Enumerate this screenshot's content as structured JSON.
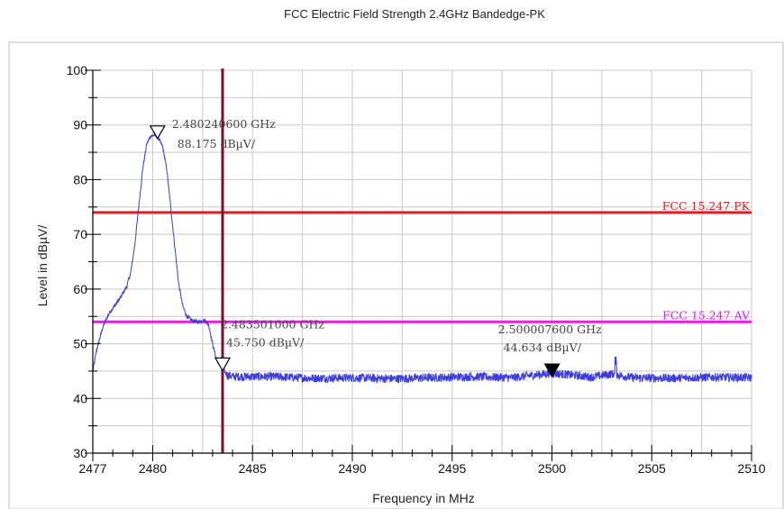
{
  "chart_data": {
    "type": "line",
    "title": "FCC Electric Field Strength 2.4GHz Bandedge-PK",
    "xlabel": "Frequency in MHz",
    "ylabel": "Level in dBµV/",
    "xlim": [
      2477,
      2510
    ],
    "ylim": [
      30,
      100
    ],
    "x_ticks": [
      2477,
      2480,
      2485,
      2490,
      2495,
      2500,
      2505,
      2510
    ],
    "y_ticks": [
      30,
      40,
      50,
      60,
      70,
      80,
      90,
      100
    ],
    "grid": true,
    "series": [
      {
        "color": "#3a3ae0",
        "points": [
          [
            2477.0,
            45
          ],
          [
            2477.2,
            49
          ],
          [
            2477.5,
            53
          ],
          [
            2477.8,
            55.5
          ],
          [
            2478.1,
            57
          ],
          [
            2478.4,
            58.5
          ],
          [
            2478.7,
            60.5
          ],
          [
            2478.9,
            63
          ],
          [
            2479.1,
            68
          ],
          [
            2479.3,
            75
          ],
          [
            2479.5,
            82
          ],
          [
            2479.7,
            86.5
          ],
          [
            2479.9,
            88
          ],
          [
            2480.2,
            88.175
          ],
          [
            2480.5,
            86
          ],
          [
            2480.7,
            82
          ],
          [
            2480.9,
            75
          ],
          [
            2481.1,
            68
          ],
          [
            2481.3,
            61
          ],
          [
            2481.5,
            57
          ],
          [
            2481.7,
            55
          ],
          [
            2482.0,
            54.2
          ],
          [
            2482.3,
            54
          ],
          [
            2482.6,
            54.3
          ],
          [
            2482.8,
            53.5
          ],
          [
            2483.0,
            50
          ],
          [
            2483.2,
            47
          ],
          [
            2483.5,
            45.75
          ],
          [
            2483.7,
            44.3
          ],
          [
            2484.0,
            44
          ],
          [
            2486.0,
            44
          ],
          [
            2488.0,
            43.7
          ],
          [
            2490.0,
            43.8
          ],
          [
            2492.0,
            43.6
          ],
          [
            2494.0,
            43.8
          ],
          [
            2496.0,
            44
          ],
          [
            2498.0,
            43.8
          ],
          [
            2500.0,
            44.634
          ],
          [
            2502.0,
            43.9
          ],
          [
            2503.0,
            44.5
          ],
          [
            2504.0,
            43.8
          ],
          [
            2506.0,
            43.7
          ],
          [
            2508.0,
            43.9
          ],
          [
            2510.0,
            43.8
          ]
        ]
      }
    ],
    "limit_lines": [
      {
        "label": "FCC 15.247 PK",
        "value": 74,
        "color": "#e02020"
      },
      {
        "label": "FCC 15.247 AV",
        "value": 54,
        "color": "#e020e0"
      }
    ],
    "vertical_lines": [
      {
        "x": 2483.5,
        "color": "#7a0f2e"
      }
    ],
    "markers": [
      {
        "x": 2480.2406,
        "y": 88.175,
        "freq_text": "2.480240600 GHz",
        "level_text": "88.175 dBµV/",
        "filled": false
      },
      {
        "x": 2483.501,
        "y": 45.75,
        "freq_text": "2.483501000 GHz",
        "level_text": "45.750 dBµV/",
        "filled": false
      },
      {
        "x": 2500.0076,
        "y": 44.634,
        "freq_text": "2.500007600 GHz",
        "level_text": "44.634 dBµV/",
        "filled": true
      }
    ]
  }
}
